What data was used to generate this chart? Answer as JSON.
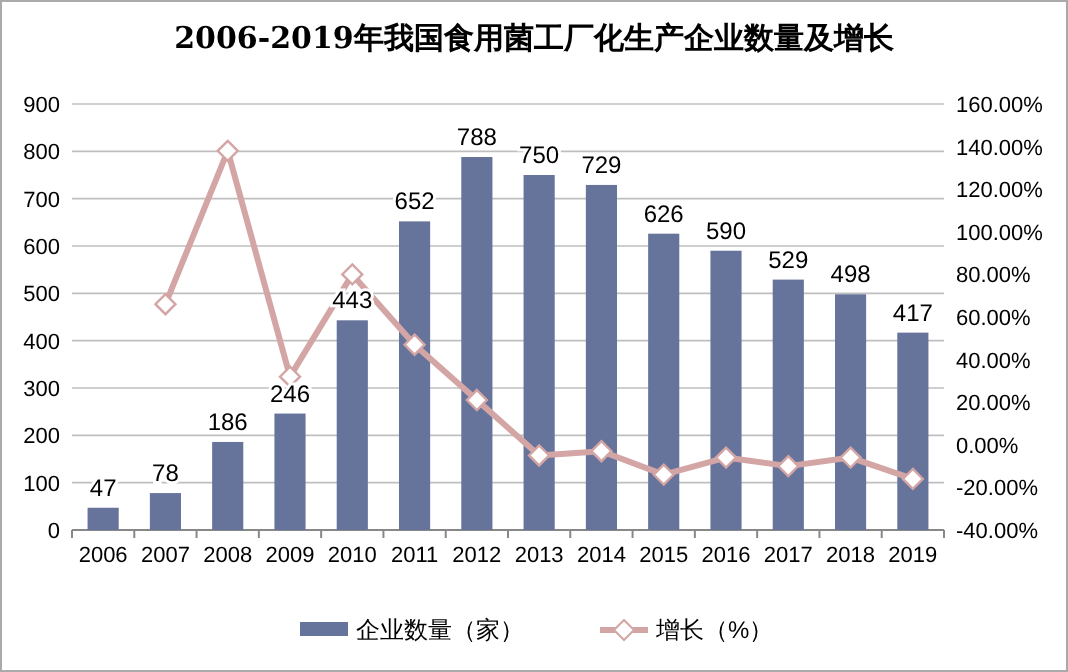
{
  "chart_data": {
    "type": "bar",
    "title": "2006-2019年我国食用菌工厂化生产企业数量及增长",
    "categories": [
      "2006",
      "2007",
      "2008",
      "2009",
      "2010",
      "2011",
      "2012",
      "2013",
      "2014",
      "2015",
      "2016",
      "2017",
      "2018",
      "2019"
    ],
    "series": [
      {
        "name": "企业数量（家）",
        "color": "#66739a",
        "values": [
          47,
          78,
          186,
          246,
          443,
          652,
          788,
          750,
          729,
          626,
          590,
          529,
          498,
          417
        ],
        "value_labels": [
          "47",
          "78",
          "186",
          "246",
          "443",
          "652",
          "788",
          "750",
          "729",
          "626",
          "590",
          "529",
          "498",
          "417"
        ]
      },
      {
        "name": "增长（%）",
        "type": "line",
        "axis": "y2",
        "color": "#d4a5a5",
        "marker": "diamond",
        "values": [
          null,
          66,
          138,
          32,
          80,
          47,
          21,
          -5,
          -3,
          -14,
          -6,
          -10,
          -6,
          -16
        ]
      }
    ],
    "ylim": [
      0,
      900
    ],
    "yticks": [
      0,
      100,
      200,
      300,
      400,
      500,
      600,
      700,
      800,
      900
    ],
    "y2lim": [
      -40,
      160
    ],
    "y2ticks": [
      {
        "value": -40,
        "label": "-40.00%"
      },
      {
        "value": -20,
        "label": "-20.00%"
      },
      {
        "value": 0,
        "label": "0.00%"
      },
      {
        "value": 20,
        "label": "20.00%"
      },
      {
        "value": 40,
        "label": "40.00%"
      },
      {
        "value": 60,
        "label": "60.00%"
      },
      {
        "value": 80,
        "label": "80.00%"
      },
      {
        "value": 100,
        "label": "100.00%"
      },
      {
        "value": 120,
        "label": "120.00%"
      },
      {
        "value": 140,
        "label": "140.00%"
      },
      {
        "value": 160,
        "label": "160.00%"
      }
    ],
    "grid": "y",
    "legend": "bottom"
  }
}
